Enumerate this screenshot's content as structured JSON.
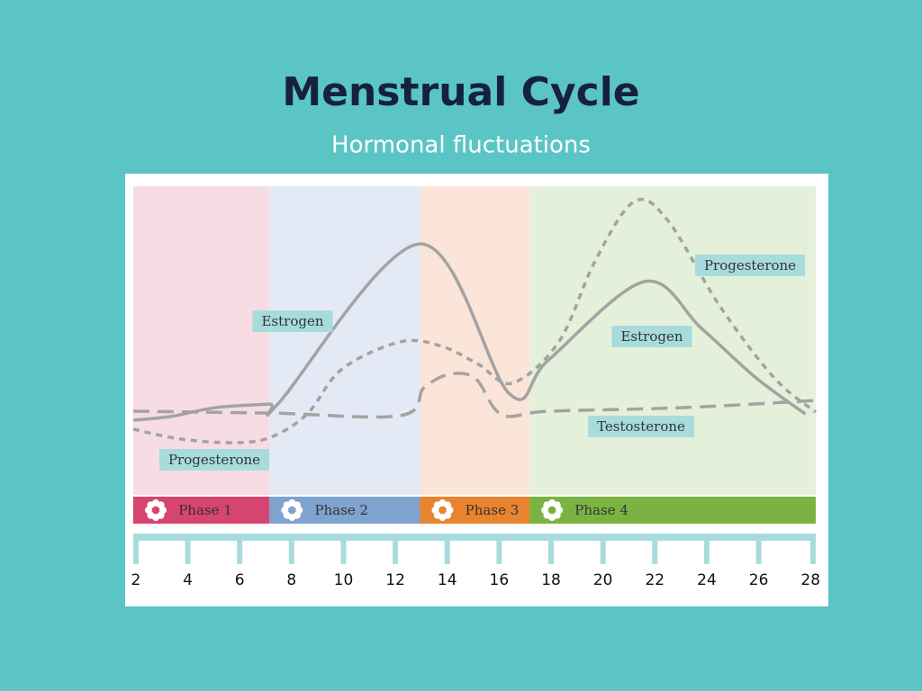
{
  "chart_data": {
    "type": "line",
    "title": "Menstrual Cycle",
    "subtitle": "Hormonal fluctuations",
    "xlim": [
      1.9,
      28.2
    ],
    "xticks": [
      2,
      4,
      6,
      8,
      10,
      12,
      14,
      16,
      18,
      20,
      22,
      24,
      26,
      28
    ],
    "ylim": [
      0,
      100
    ],
    "phases": [
      {
        "name": "Phase 1",
        "start": 1.9,
        "end": 7.15,
        "color": "#d6456f",
        "background": "#f7dce3"
      },
      {
        "name": "Phase 2",
        "start": 7.15,
        "end": 12.95,
        "color": "#7fa3cf",
        "background": "#e4eaf5"
      },
      {
        "name": "Phase 3",
        "start": 12.95,
        "end": 17.17,
        "color": "#e8842f",
        "background": "#fbe5d8"
      },
      {
        "name": "Phase 4",
        "start": 17.17,
        "end": 28.2,
        "color": "#7bb342",
        "background": "#e5f0da"
      }
    ],
    "series": [
      {
        "name": "Estrogen",
        "color": "#a3a3a3",
        "style": "solid",
        "x": [
          1.9,
          3.35,
          5.1,
          7.15,
          7.5,
          12.95,
          16.4,
          17.9,
          21.6,
          23.8,
          25.9,
          27.8
        ],
        "values": [
          24.2,
          25.4,
          28.3,
          29.4,
          29.7,
          81.3,
          32.7,
          43.7,
          69.1,
          53.9,
          37.9,
          26.2
        ]
      },
      {
        "name": "Progesterone",
        "color": "#a3a3a3",
        "style": "dashed",
        "x": [
          1.9,
          3.7,
          5.8,
          7.2,
          8.6,
          9.95,
          12.2,
          13.8,
          15.2,
          16.5,
          18.3,
          19.7,
          21.2,
          22.5,
          24.5,
          26.6,
          28.2
        ],
        "values": [
          21.3,
          18.1,
          16.9,
          18.7,
          26.2,
          40.8,
          49.6,
          48.1,
          42.3,
          36.2,
          49.6,
          75.8,
          95.0,
          88.9,
          61.2,
          37.9,
          26.8
        ]
      },
      {
        "name": "Testosterone",
        "color": "#a3a3a3",
        "style": "long-dashed",
        "x": [
          1.9,
          7.2,
          12.2,
          13.1,
          14.1,
          15.1,
          16.1,
          17.9,
          23.2,
          28.2
        ],
        "values": [
          27.1,
          26.5,
          25.7,
          34.7,
          39.1,
          37.6,
          26.0,
          27.1,
          28.3,
          30.6
        ]
      }
    ]
  }
}
